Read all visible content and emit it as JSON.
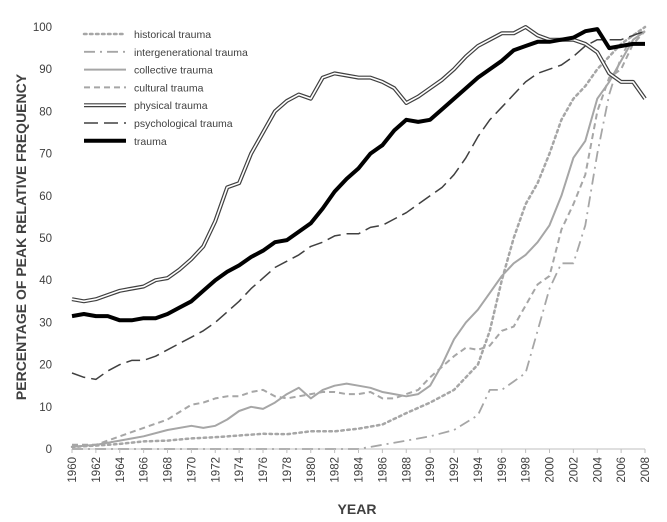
{
  "chart_data": {
    "type": "line",
    "title": "",
    "xlabel": "YEAR",
    "ylabel": "PERCENTAGE OF PEAK RELATIVE FREQUENCY",
    "xlim": [
      1960,
      2008
    ],
    "ylim": [
      0,
      100
    ],
    "yticks": [
      0,
      10,
      20,
      30,
      40,
      50,
      60,
      70,
      80,
      90,
      100
    ],
    "xticks": [
      1960,
      1962,
      1964,
      1966,
      1968,
      1970,
      1972,
      1974,
      1976,
      1978,
      1980,
      1982,
      1984,
      1986,
      1988,
      1990,
      1992,
      1994,
      1996,
      1998,
      2000,
      2002,
      2004,
      2006,
      2008
    ],
    "grid": false,
    "legend_position": "top-left",
    "series": [
      {
        "name": "historical trauma",
        "color": "#a6a6a6",
        "style": "dotted",
        "x": [
          1960,
          1962,
          1964,
          1966,
          1968,
          1970,
          1972,
          1974,
          1976,
          1978,
          1980,
          1982,
          1984,
          1986,
          1988,
          1990,
          1992,
          1993,
          1994,
          1995,
          1996,
          1997,
          1998,
          1999,
          2000,
          2001,
          2002,
          2003,
          2004,
          2005,
          2006,
          2007,
          2008
        ],
        "values": [
          0.5,
          0.8,
          1.2,
          1.8,
          2.0,
          2.5,
          2.8,
          3.2,
          3.6,
          3.5,
          4.2,
          4.2,
          4.8,
          5.8,
          8.5,
          11,
          14,
          17,
          20,
          28,
          40,
          50,
          58,
          63,
          70,
          78,
          83,
          86,
          90,
          93,
          96,
          98,
          100
        ]
      },
      {
        "name": "intergenerational trauma",
        "color": "#a6a6a6",
        "style": "dashdot",
        "x": [
          1960,
          1970,
          1984,
          1985,
          1986,
          1988,
          1990,
          1992,
          1994,
          1995,
          1996,
          1997,
          1998,
          1999,
          2000,
          2001,
          2002,
          2003,
          2004,
          2005,
          2006,
          2007,
          2008
        ],
        "values": [
          0,
          0,
          0,
          0.5,
          1,
          2,
          3,
          4.5,
          8,
          14,
          14,
          16,
          18,
          28,
          38,
          44,
          44,
          53,
          70,
          84,
          93,
          98,
          99
        ]
      },
      {
        "name": "collective trauma",
        "color": "#a6a6a6",
        "style": "solid",
        "x": [
          1960,
          1962,
          1964,
          1966,
          1968,
          1970,
          1971,
          1972,
          1973,
          1974,
          1975,
          1976,
          1977,
          1978,
          1979,
          1980,
          1981,
          1982,
          1983,
          1984,
          1985,
          1986,
          1987,
          1988,
          1989,
          1990,
          1991,
          1992,
          1993,
          1994,
          1995,
          1996,
          1997,
          1998,
          1999,
          2000,
          2001,
          2002,
          2003,
          2004,
          2005,
          2006,
          2007,
          2008
        ],
        "values": [
          0.5,
          1,
          2,
          3,
          4.5,
          5.5,
          5,
          5.5,
          7,
          9,
          10,
          9.5,
          11,
          13,
          14.5,
          12,
          14,
          15,
          15.5,
          15,
          14.5,
          13.5,
          13,
          12.5,
          13,
          15,
          20,
          26,
          30,
          33,
          37,
          41,
          44,
          46,
          49,
          53,
          60,
          69,
          73,
          83,
          87,
          92,
          97,
          99
        ]
      },
      {
        "name": "cultural trauma",
        "color": "#a6a6a6",
        "style": "dashed",
        "x": [
          1960,
          1962,
          1964,
          1966,
          1968,
          1970,
          1971,
          1972,
          1973,
          1974,
          1975,
          1976,
          1977,
          1978,
          1979,
          1980,
          1981,
          1982,
          1983,
          1984,
          1985,
          1986,
          1987,
          1988,
          1989,
          1990,
          1991,
          1992,
          1993,
          1994,
          1995,
          1996,
          1997,
          1998,
          1999,
          2000,
          2001,
          2002,
          2003,
          2004,
          2005,
          2006,
          2007,
          2008
        ],
        "values": [
          1,
          1,
          3,
          5,
          7,
          10.5,
          11,
          12,
          12.5,
          12.5,
          13.5,
          14,
          12.5,
          12,
          12.5,
          13,
          13.5,
          13.5,
          13,
          13,
          13.5,
          12,
          12,
          13,
          14,
          17,
          19.5,
          22,
          24,
          23.5,
          24.5,
          28,
          29,
          34,
          39,
          41,
          52,
          58,
          65,
          80,
          88,
          90,
          96,
          99
        ]
      },
      {
        "name": "physical trauma",
        "color": "#404040",
        "style": "double",
        "x": [
          1960,
          1961,
          1962,
          1963,
          1964,
          1965,
          1966,
          1967,
          1968,
          1969,
          1970,
          1971,
          1972,
          1973,
          1974,
          1975,
          1976,
          1977,
          1978,
          1979,
          1980,
          1981,
          1982,
          1983,
          1984,
          1985,
          1986,
          1987,
          1988,
          1989,
          1990,
          1991,
          1992,
          1993,
          1994,
          1995,
          1996,
          1997,
          1998,
          1999,
          2000,
          2001,
          2002,
          2003,
          2004,
          2005,
          2006,
          2007,
          2008
        ],
        "values": [
          35.5,
          35,
          35.5,
          36.5,
          37.5,
          38,
          38.5,
          40,
          40.5,
          42.5,
          45,
          48,
          54,
          62,
          63,
          70,
          75,
          80,
          82.5,
          84,
          83,
          88,
          89,
          88.5,
          88,
          88,
          87,
          85.5,
          82,
          83.5,
          85.5,
          87.5,
          90,
          93,
          95.5,
          97,
          98.5,
          98.5,
          100,
          98,
          97,
          97,
          97,
          96,
          94,
          89,
          87,
          87,
          83
        ]
      },
      {
        "name": "psychological trauma",
        "color": "#404040",
        "style": "longdash",
        "x": [
          1960,
          1961,
          1962,
          1963,
          1964,
          1965,
          1966,
          1967,
          1968,
          1969,
          1970,
          1971,
          1972,
          1973,
          1974,
          1975,
          1976,
          1977,
          1978,
          1979,
          1980,
          1981,
          1982,
          1983,
          1984,
          1985,
          1986,
          1987,
          1988,
          1989,
          1990,
          1991,
          1992,
          1993,
          1994,
          1995,
          1996,
          1997,
          1998,
          1999,
          2000,
          2001,
          2002,
          2003,
          2004,
          2005,
          2006,
          2007,
          2008
        ],
        "values": [
          18,
          17,
          16.5,
          18.5,
          20,
          21,
          21,
          22,
          23.5,
          25,
          26.5,
          28,
          30,
          32.5,
          35,
          38,
          40.5,
          43,
          44.5,
          46,
          48,
          49,
          50.5,
          51,
          51,
          52.5,
          53,
          54.5,
          56,
          58,
          60,
          62,
          65,
          69,
          74,
          78,
          81,
          84,
          87,
          89,
          90,
          91,
          93,
          95.5,
          97,
          97,
          97,
          98,
          99
        ]
      },
      {
        "name": "trauma",
        "color": "#000000",
        "style": "thick",
        "x": [
          1960,
          1961,
          1962,
          1963,
          1964,
          1965,
          1966,
          1967,
          1968,
          1969,
          1970,
          1971,
          1972,
          1973,
          1974,
          1975,
          1976,
          1977,
          1978,
          1979,
          1980,
          1981,
          1982,
          1983,
          1984,
          1985,
          1986,
          1987,
          1988,
          1989,
          1990,
          1991,
          1992,
          1993,
          1994,
          1995,
          1996,
          1997,
          1998,
          1999,
          2000,
          2001,
          2002,
          2003,
          2004,
          2005,
          2006,
          2007,
          2008
        ],
        "values": [
          31.5,
          32,
          31.5,
          31.5,
          30.5,
          30.5,
          31,
          31,
          32,
          33.5,
          35,
          37.5,
          40,
          42,
          43.5,
          45.5,
          47,
          49,
          49.5,
          51.5,
          53.5,
          57,
          61,
          64,
          66.5,
          70,
          72,
          75.5,
          78,
          77.5,
          78,
          80.5,
          83,
          85.5,
          88,
          90,
          92,
          94.5,
          95.5,
          96.5,
          96.5,
          97,
          97.5,
          99,
          99.5,
          95,
          95.5,
          96,
          96
        ]
      }
    ]
  }
}
